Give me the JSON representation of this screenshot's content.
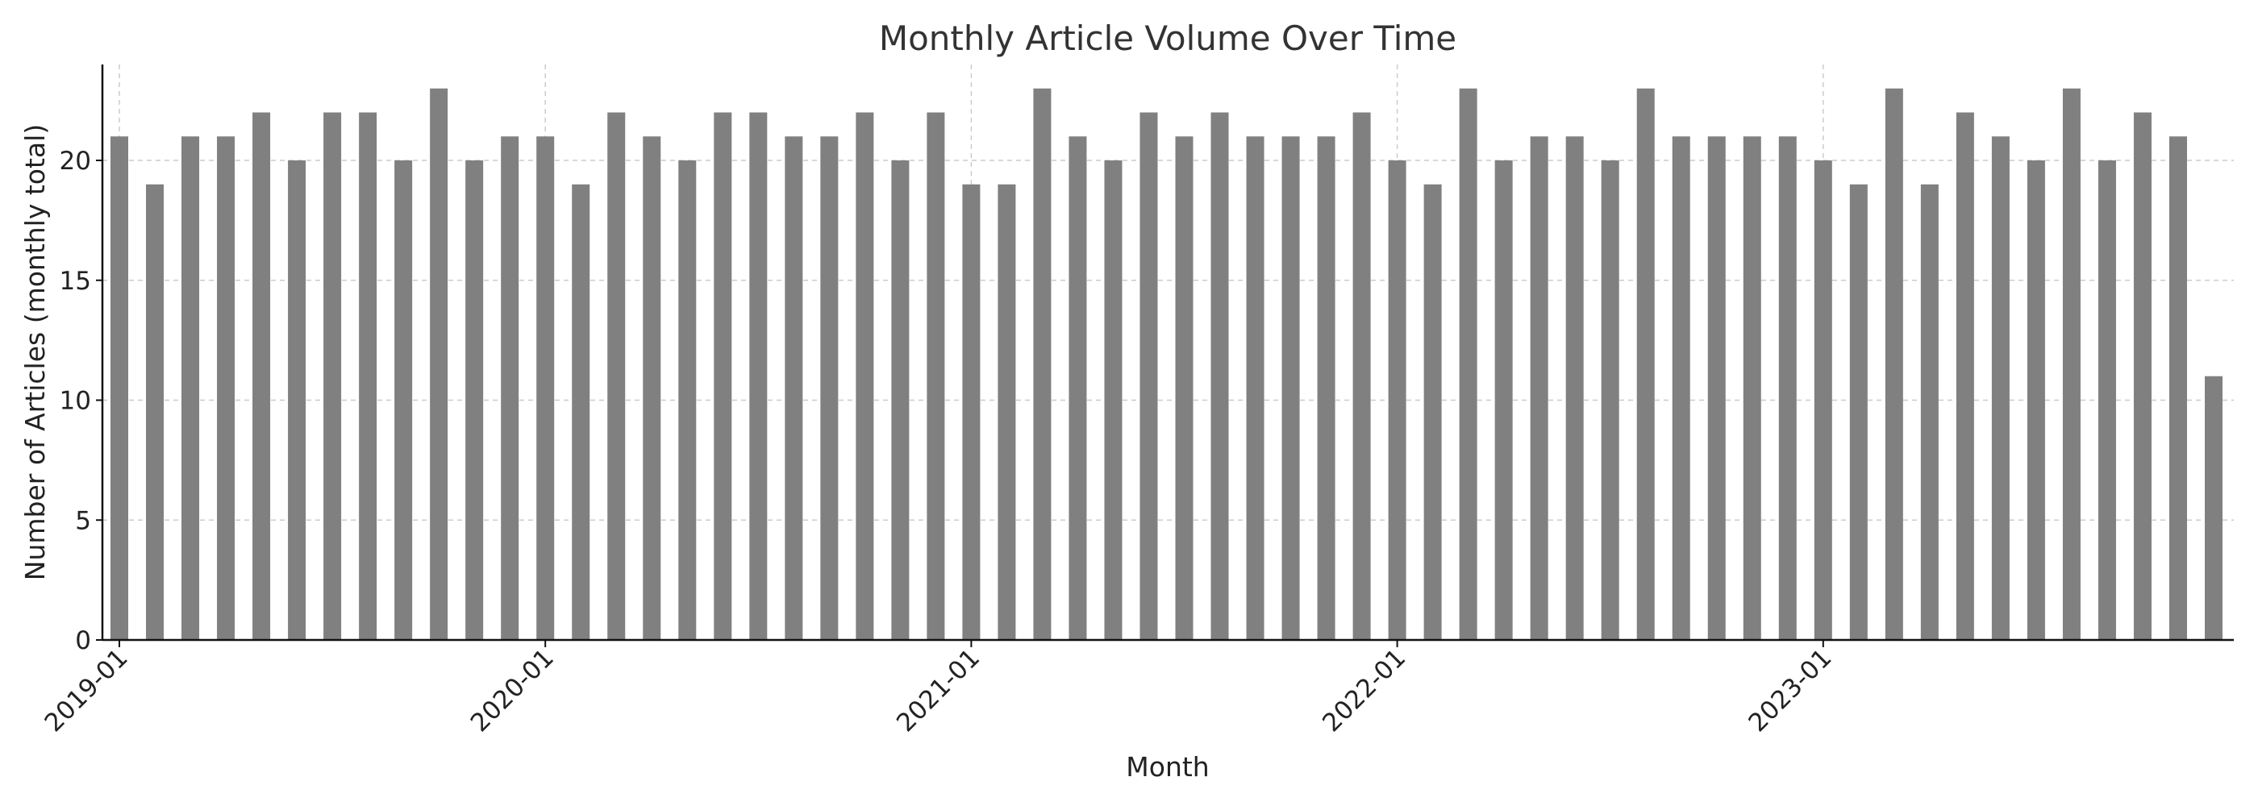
{
  "chart_data": {
    "type": "bar",
    "title": "Monthly Article Volume Over Time",
    "xlabel": "Month",
    "ylabel": "Number of Articles (monthly total)",
    "ylim": [
      0,
      24
    ],
    "yticks": [
      0,
      5,
      10,
      15,
      20
    ],
    "grid": true,
    "bar_color": "#808080",
    "x_tick_labels": [
      "2019-01",
      "2020-01",
      "2021-01",
      "2022-01",
      "2023-01"
    ],
    "categories": [
      "2019-01",
      "2019-02",
      "2019-03",
      "2019-04",
      "2019-05",
      "2019-06",
      "2019-07",
      "2019-08",
      "2019-09",
      "2019-10",
      "2019-11",
      "2019-12",
      "2020-01",
      "2020-02",
      "2020-03",
      "2020-04",
      "2020-05",
      "2020-06",
      "2020-07",
      "2020-08",
      "2020-09",
      "2020-10",
      "2020-11",
      "2020-12",
      "2021-01",
      "2021-02",
      "2021-03",
      "2021-04",
      "2021-05",
      "2021-06",
      "2021-07",
      "2021-08",
      "2021-09",
      "2021-10",
      "2021-11",
      "2021-12",
      "2022-01",
      "2022-02",
      "2022-03",
      "2022-04",
      "2022-05",
      "2022-06",
      "2022-07",
      "2022-08",
      "2022-09",
      "2022-10",
      "2022-11",
      "2022-12",
      "2023-01",
      "2023-02",
      "2023-03",
      "2023-04",
      "2023-05",
      "2023-06",
      "2023-07",
      "2023-08",
      "2023-09",
      "2023-10",
      "2023-11",
      "2023-12"
    ],
    "values": [
      21,
      19,
      21,
      21,
      22,
      20,
      22,
      22,
      20,
      23,
      20,
      21,
      21,
      19,
      22,
      21,
      20,
      22,
      22,
      21,
      21,
      22,
      20,
      22,
      19,
      19,
      23,
      21,
      20,
      22,
      21,
      22,
      21,
      21,
      21,
      22,
      20,
      19,
      23,
      20,
      21,
      21,
      20,
      23,
      21,
      21,
      21,
      21,
      20,
      19,
      23,
      19,
      22,
      21,
      20,
      23,
      20,
      22,
      21,
      11
    ]
  }
}
